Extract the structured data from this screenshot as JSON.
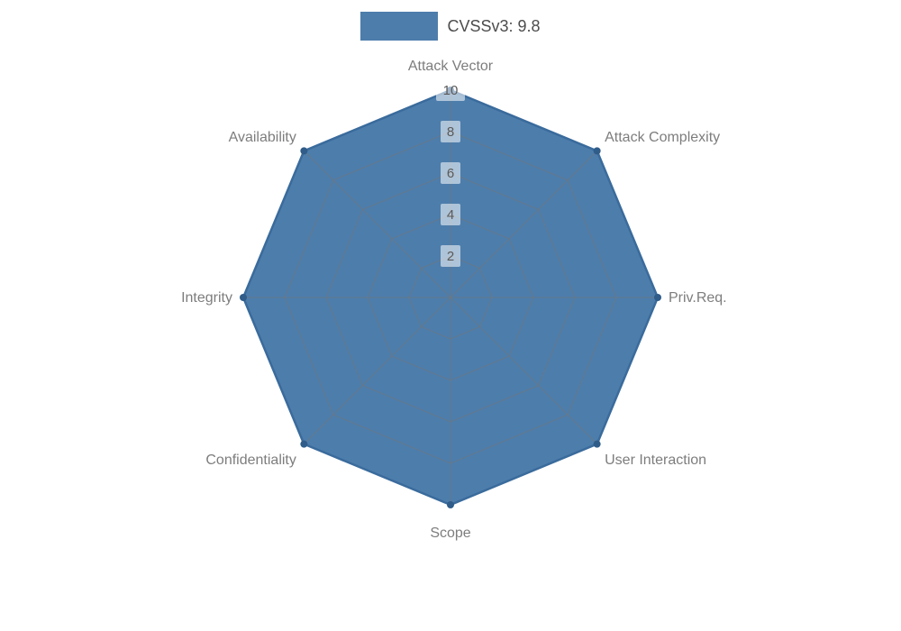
{
  "chart_data": {
    "type": "radar",
    "title": "CVSSv3: 9.8",
    "categories": [
      "Attack Vector",
      "Attack Complexity",
      "Priv.Req.",
      "User Interaction",
      "Scope",
      "Confidentiality",
      "Integrity",
      "Availability"
    ],
    "series": [
      {
        "name": "CVSSv3: 9.8",
        "values": [
          10,
          10,
          10,
          10,
          10,
          10,
          10,
          10
        ]
      }
    ],
    "radial_ticks": [
      2,
      4,
      6,
      8,
      10
    ],
    "rlim": [
      0,
      10
    ],
    "grid": true,
    "legend_position": "top-center",
    "start_axis": "top",
    "direction": "clockwise"
  },
  "colors": {
    "fill": "#4d7dab",
    "edge": "#3a6b9c",
    "marker": "#2f5c89",
    "grid": "#777777",
    "axis_label": "#7d7d7d",
    "tick_label": "#5a5a5a",
    "tick_box": "#ffffff",
    "legend_text": "#4d4d4d",
    "background": "#ffffff"
  }
}
